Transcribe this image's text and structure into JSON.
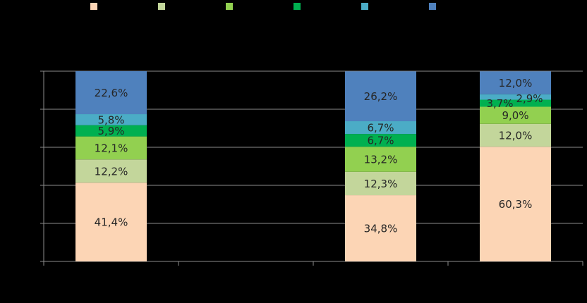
{
  "chart_data": {
    "type": "bar",
    "stacked": true,
    "percent": true,
    "categories": [
      "",
      "",
      "",
      ""
    ],
    "legend_position": "top",
    "grid": true,
    "ylim": [
      0,
      100
    ],
    "colors": {
      "background": "#000000",
      "axis": "#8c8c8c",
      "grid": "#8c8c8c",
      "label": "#262626"
    },
    "series": [
      {
        "color": "#fcd5b5",
        "values": [
          41.4,
          null,
          34.8,
          60.3
        ],
        "labels": [
          "41,4%",
          "",
          "34,8%",
          "60,3%"
        ]
      },
      {
        "color": "#c3d69b",
        "values": [
          12.2,
          null,
          12.3,
          12.0
        ],
        "labels": [
          "12,2%",
          "",
          "12,3%",
          "12,0%"
        ]
      },
      {
        "color": "#92d050",
        "values": [
          12.1,
          null,
          13.2,
          9.0
        ],
        "labels": [
          "12,1%",
          "",
          "13,2%",
          "9,0%"
        ]
      },
      {
        "color": "#00b050",
        "values": [
          5.9,
          null,
          6.7,
          3.7
        ],
        "labels": [
          "5,9%",
          "",
          "6,7%",
          "3,7%"
        ]
      },
      {
        "color": "#4bacc6",
        "values": [
          5.8,
          null,
          6.7,
          2.9
        ],
        "labels": [
          "5,8%",
          "",
          "6,7%",
          "2,9%"
        ]
      },
      {
        "color": "#4f81bd",
        "values": [
          22.6,
          null,
          26.2,
          12.0
        ],
        "labels": [
          "22,6%",
          "",
          "26,2%",
          "12,0%"
        ]
      }
    ]
  }
}
